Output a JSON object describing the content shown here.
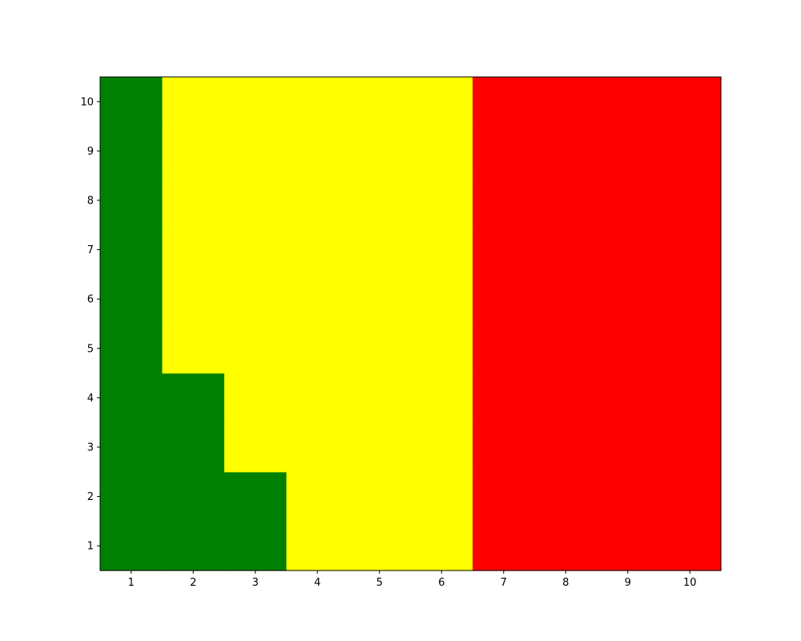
{
  "chart_data": {
    "type": "heatmap",
    "title": "",
    "xlabel": "",
    "ylabel": "",
    "x": [
      1,
      2,
      3,
      4,
      5,
      6,
      7,
      8,
      9,
      10
    ],
    "y": [
      1,
      2,
      3,
      4,
      5,
      6,
      7,
      8,
      9,
      10
    ],
    "xlim": [
      0.5,
      10.5
    ],
    "ylim": [
      0.5,
      10.5
    ],
    "grid": false,
    "colors": {
      "green": "#008000",
      "yellow": "#ffff00",
      "red": "#ff0000"
    },
    "rows": [
      {
        "y": 1,
        "cells": [
          "green",
          "green",
          "green",
          "yellow",
          "yellow",
          "yellow",
          "red",
          "red",
          "red",
          "red"
        ]
      },
      {
        "y": 2,
        "cells": [
          "green",
          "green",
          "green",
          "yellow",
          "yellow",
          "yellow",
          "red",
          "red",
          "red",
          "red"
        ]
      },
      {
        "y": 3,
        "cells": [
          "green",
          "green",
          "yellow",
          "yellow",
          "yellow",
          "yellow",
          "red",
          "red",
          "red",
          "red"
        ]
      },
      {
        "y": 4,
        "cells": [
          "green",
          "green",
          "yellow",
          "yellow",
          "yellow",
          "yellow",
          "red",
          "red",
          "red",
          "red"
        ]
      },
      {
        "y": 5,
        "cells": [
          "green",
          "yellow",
          "yellow",
          "yellow",
          "yellow",
          "yellow",
          "red",
          "red",
          "red",
          "red"
        ]
      },
      {
        "y": 6,
        "cells": [
          "green",
          "yellow",
          "yellow",
          "yellow",
          "yellow",
          "yellow",
          "red",
          "red",
          "red",
          "red"
        ]
      },
      {
        "y": 7,
        "cells": [
          "green",
          "yellow",
          "yellow",
          "yellow",
          "yellow",
          "yellow",
          "red",
          "red",
          "red",
          "red"
        ]
      },
      {
        "y": 8,
        "cells": [
          "green",
          "yellow",
          "yellow",
          "yellow",
          "yellow",
          "yellow",
          "red",
          "red",
          "red",
          "red"
        ]
      },
      {
        "y": 9,
        "cells": [
          "green",
          "yellow",
          "yellow",
          "yellow",
          "yellow",
          "yellow",
          "red",
          "red",
          "red",
          "red"
        ]
      },
      {
        "y": 10,
        "cells": [
          "green",
          "yellow",
          "yellow",
          "yellow",
          "yellow",
          "yellow",
          "red",
          "red",
          "red",
          "red"
        ]
      }
    ]
  }
}
